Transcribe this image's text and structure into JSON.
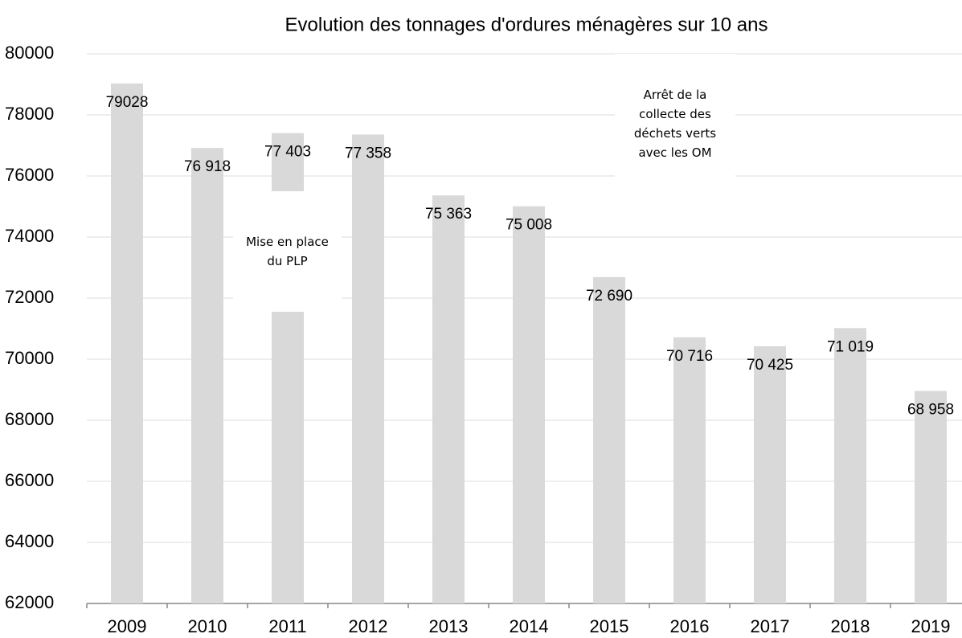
{
  "chart_data": {
    "type": "bar",
    "title": "Evolution des tonnages d'ordures ménagères sur 10 ans",
    "categories": [
      "2009",
      "2010",
      "2011",
      "2012",
      "2013",
      "2014",
      "2015",
      "2016",
      "2017",
      "2018",
      "2019"
    ],
    "values": [
      79028,
      76918,
      77403,
      77358,
      75363,
      75008,
      72690,
      70716,
      70425,
      71019,
      68958
    ],
    "value_labels": [
      "79028",
      "76 918",
      "77 403",
      "77 358",
      "75 363",
      "75 008",
      "72 690",
      "70 716",
      "70 425",
      "71 019",
      "68 958"
    ],
    "color": "#d9d9d9",
    "ylim": [
      62000,
      80000
    ],
    "yticks": [
      62000,
      64000,
      66000,
      68000,
      70000,
      72000,
      74000,
      76000,
      78000,
      80000
    ],
    "grid": true,
    "annotations": [
      "Mise en place du PLP",
      "Arrêt de la collecte des déchets verts avec les OM"
    ]
  }
}
